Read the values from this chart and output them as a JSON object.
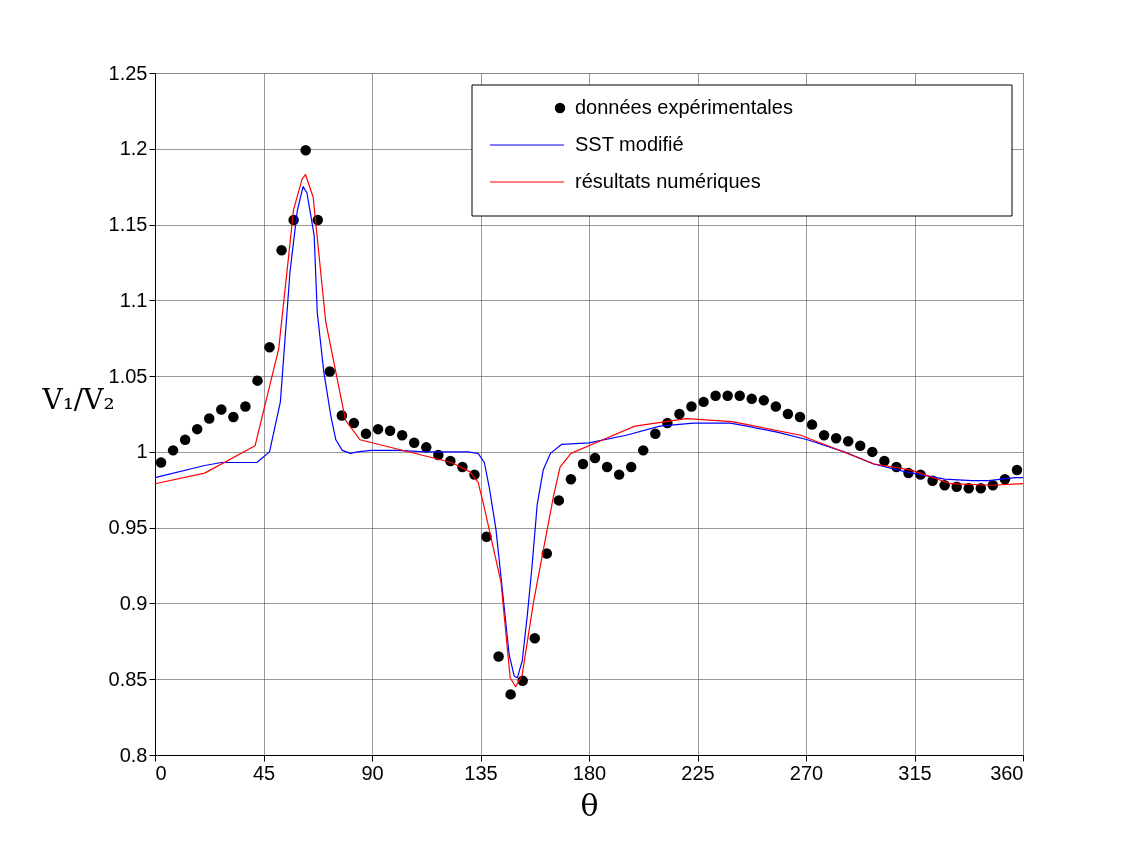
{
  "chart_data": {
    "type": "line",
    "xlabel": "θ",
    "ylabel": "V₁/V₂",
    "xlim": [
      0,
      360
    ],
    "xticks": [
      0,
      45,
      90,
      135,
      180,
      225,
      270,
      315,
      360
    ],
    "ylim": [
      0.8,
      1.25
    ],
    "yticks": [
      0.8,
      0.85,
      0.9,
      0.95,
      1,
      1.05,
      1.1,
      1.15,
      1.2,
      1.25
    ],
    "grid": true,
    "legend": "top right",
    "series": [
      {
        "name": "données expérimentales",
        "type": "scatter",
        "marker": "circle",
        "color": "#000000",
        "x": [
          2.5,
          7.5,
          12.5,
          17.5,
          22.5,
          27.5,
          32.5,
          37.5,
          42.5,
          47.5,
          52.5,
          57.5,
          62.5,
          67.5,
          72.5,
          77.5,
          82.5,
          87.5,
          92.5,
          97.5,
          102.5,
          107.5,
          112.5,
          117.5,
          122.5,
          127.5,
          132.5,
          137.5,
          142.5,
          147.5,
          152.5,
          157.5,
          162.5,
          167.5,
          172.5,
          177.5,
          182.5,
          187.5,
          192.5,
          197.5,
          202.5,
          207.5,
          212.5,
          217.5,
          222.5,
          227.5,
          232.5,
          237.5,
          242.5,
          247.5,
          252.5,
          257.5,
          262.5,
          267.5,
          272.5,
          277.5,
          282.5,
          287.5,
          292.5,
          297.5,
          302.5,
          307.5,
          312.5,
          317.5,
          322.5,
          327.5,
          332.5,
          337.5,
          342.5,
          347.5,
          352.5,
          357.5
        ],
        "values": [
          0.993,
          1.001,
          1.008,
          1.015,
          1.022,
          1.028,
          1.023,
          1.03,
          1.047,
          1.069,
          1.133,
          1.153,
          1.199,
          1.153,
          1.053,
          1.024,
          1.019,
          1.012,
          1.015,
          1.014,
          1.011,
          1.006,
          1.003,
          0.998,
          0.994,
          0.99,
          0.985,
          0.944,
          0.865,
          0.84,
          0.849,
          0.877,
          0.933,
          0.968,
          0.982,
          0.992,
          0.996,
          0.99,
          0.985,
          0.99,
          1.001,
          1.012,
          1.019,
          1.025,
          1.03,
          1.033,
          1.037,
          1.037,
          1.037,
          1.035,
          1.034,
          1.03,
          1.025,
          1.023,
          1.018,
          1.011,
          1.009,
          1.007,
          1.004,
          1.0,
          0.994,
          0.99,
          0.986,
          0.985,
          0.981,
          0.978,
          0.977,
          0.976,
          0.976,
          0.978,
          0.982,
          0.988
        ]
      },
      {
        "name": "SST modifié",
        "type": "line",
        "color": "#0000ff",
        "x": [
          0,
          20.6,
          27.6,
          42.2,
          47.5,
          52,
          56,
          59,
          61.4,
          63,
          66,
          67.3,
          70,
          72.9,
          75,
          77.7,
          81,
          84,
          89.6,
          100.7,
          112,
          129.8,
          134,
          136.6,
          138.7,
          141.4,
          144,
          146.9,
          149,
          150.3,
          152.3,
          154.4,
          156.4,
          158.5,
          161,
          164,
          168.7,
          180,
          195.4,
          209.4,
          223.3,
          238.6,
          245.5,
          258,
          270.6,
          285.9,
          298,
          311,
          327.5,
          338.8,
          345.7,
          356.8,
          360
        ],
        "values": [
          0.983,
          0.991,
          0.993,
          0.993,
          1.0,
          1.033,
          1.119,
          1.159,
          1.175,
          1.171,
          1.143,
          1.092,
          1.053,
          1.024,
          1.008,
          1.001,
          0.999,
          1.0,
          1.001,
          1.001,
          1.0,
          1.0,
          0.999,
          0.993,
          0.976,
          0.949,
          0.91,
          0.866,
          0.852,
          0.851,
          0.862,
          0.892,
          0.925,
          0.965,
          0.988,
          0.999,
          1.005,
          1.006,
          1.011,
          1.017,
          1.019,
          1.019,
          1.017,
          1.013,
          1.008,
          1.0,
          0.992,
          0.987,
          0.982,
          0.981,
          0.981,
          0.983,
          0.983
        ]
      },
      {
        "name": "résultats numériques",
        "type": "line",
        "color": "#ff0000",
        "x": [
          0,
          20.6,
          41.5,
          51.3,
          57.5,
          61,
          62.4,
          65.6,
          70.8,
          79,
          85,
          123,
          130.5,
          134,
          136.6,
          143.5,
          147.3,
          149.6,
          152.3,
          157,
          165.3,
          168,
          172.5,
          184.3,
          199,
          220.5,
          239.3,
          267.8,
          298.4,
          313.7,
          330,
          347,
          360
        ],
        "values": [
          0.979,
          0.986,
          1.004,
          1.068,
          1.16,
          1.18,
          1.183,
          1.168,
          1.086,
          1.021,
          1.008,
          0.993,
          0.987,
          0.98,
          0.963,
          0.914,
          0.851,
          0.845,
          0.853,
          0.901,
          0.971,
          0.99,
          0.999,
          1.007,
          1.017,
          1.022,
          1.02,
          1.011,
          0.992,
          0.988,
          0.979,
          0.978,
          0.979
        ]
      }
    ]
  }
}
